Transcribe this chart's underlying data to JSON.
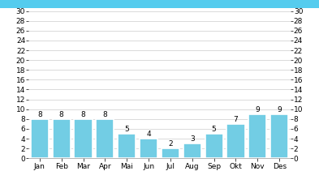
{
  "categories": [
    "Jan",
    "Feb",
    "Mar",
    "Apr",
    "Mai",
    "Jun",
    "Jul",
    "Aug",
    "Sep",
    "Okt",
    "Nov",
    "Des"
  ],
  "values": [
    8,
    8,
    8,
    8,
    5,
    4,
    2,
    3,
    5,
    7,
    9,
    9
  ],
  "bar_color": "#72CDE4",
  "bar_edgecolor": "white",
  "ylim": [
    0,
    30
  ],
  "yticks": [
    0,
    2,
    4,
    6,
    8,
    10,
    12,
    14,
    16,
    18,
    20,
    22,
    24,
    26,
    28,
    30
  ],
  "grid_color": "#cccccc",
  "plot_bg_color": "#ffffff",
  "fig_bg_color": "#ffffff",
  "top_bar_color": "#55CCEE",
  "label_fontsize": 6.5,
  "tick_fontsize": 6.5,
  "value_label_fontsize": 6.5
}
